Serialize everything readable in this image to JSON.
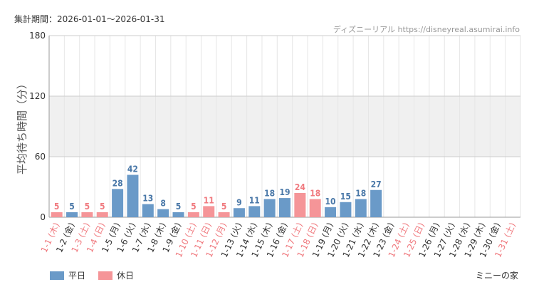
{
  "header": {
    "period_label": "集計期間：2026-01-01〜2026-01-31",
    "source_label": "ディズニーリアル https://disneyreal.asumirai.info"
  },
  "footer": {
    "attraction": "ミニーの家"
  },
  "colors": {
    "weekday": "#6a9ac8",
    "holiday": "#f59598",
    "weekday_label": "#4a78a8",
    "holiday_label": "#f07a7f",
    "band": "#f0f0f0",
    "grid": "#e6e6e6"
  },
  "chart_data": {
    "type": "bar",
    "ylabel": "平均待ち時間（分）",
    "ylim": [
      0,
      180
    ],
    "yticks": [
      0,
      60,
      120,
      180
    ],
    "band": [
      60,
      120
    ],
    "legend": [
      {
        "name": "平日",
        "kind": "weekday"
      },
      {
        "name": "休日",
        "kind": "holiday"
      }
    ],
    "categories": [
      {
        "label": "1-1 (木)",
        "value": 5,
        "kind": "holiday"
      },
      {
        "label": "1-2 (金)",
        "value": 5,
        "kind": "weekday"
      },
      {
        "label": "1-3 (土)",
        "value": 5,
        "kind": "holiday"
      },
      {
        "label": "1-4 (日)",
        "value": 5,
        "kind": "holiday"
      },
      {
        "label": "1-5 (月)",
        "value": 28,
        "kind": "weekday"
      },
      {
        "label": "1-6 (火)",
        "value": 42,
        "kind": "weekday"
      },
      {
        "label": "1-7 (水)",
        "value": 13,
        "kind": "weekday"
      },
      {
        "label": "1-8 (木)",
        "value": 8,
        "kind": "weekday"
      },
      {
        "label": "1-9 (金)",
        "value": 5,
        "kind": "weekday"
      },
      {
        "label": "1-10 (土)",
        "value": 5,
        "kind": "holiday"
      },
      {
        "label": "1-11 (日)",
        "value": 11,
        "kind": "holiday"
      },
      {
        "label": "1-12 (月)",
        "value": 5,
        "kind": "holiday"
      },
      {
        "label": "1-13 (火)",
        "value": 9,
        "kind": "weekday"
      },
      {
        "label": "1-14 (水)",
        "value": 11,
        "kind": "weekday"
      },
      {
        "label": "1-15 (木)",
        "value": 18,
        "kind": "weekday"
      },
      {
        "label": "1-16 (金)",
        "value": 19,
        "kind": "weekday"
      },
      {
        "label": "1-17 (土)",
        "value": 24,
        "kind": "holiday"
      },
      {
        "label": "1-18 (日)",
        "value": 18,
        "kind": "holiday"
      },
      {
        "label": "1-19 (月)",
        "value": 10,
        "kind": "weekday"
      },
      {
        "label": "1-20 (火)",
        "value": 15,
        "kind": "weekday"
      },
      {
        "label": "1-21 (水)",
        "value": 18,
        "kind": "weekday"
      },
      {
        "label": "1-22 (木)",
        "value": 27,
        "kind": "weekday"
      },
      {
        "label": "1-23 (金)",
        "value": null,
        "kind": "weekday"
      },
      {
        "label": "1-24 (土)",
        "value": null,
        "kind": "holiday"
      },
      {
        "label": "1-25 (日)",
        "value": null,
        "kind": "holiday"
      },
      {
        "label": "1-26 (月)",
        "value": null,
        "kind": "weekday"
      },
      {
        "label": "1-27 (火)",
        "value": null,
        "kind": "weekday"
      },
      {
        "label": "1-28 (水)",
        "value": null,
        "kind": "weekday"
      },
      {
        "label": "1-29 (木)",
        "value": null,
        "kind": "weekday"
      },
      {
        "label": "1-30 (金)",
        "value": null,
        "kind": "weekday"
      },
      {
        "label": "1-31 (土)",
        "value": null,
        "kind": "holiday"
      }
    ]
  }
}
